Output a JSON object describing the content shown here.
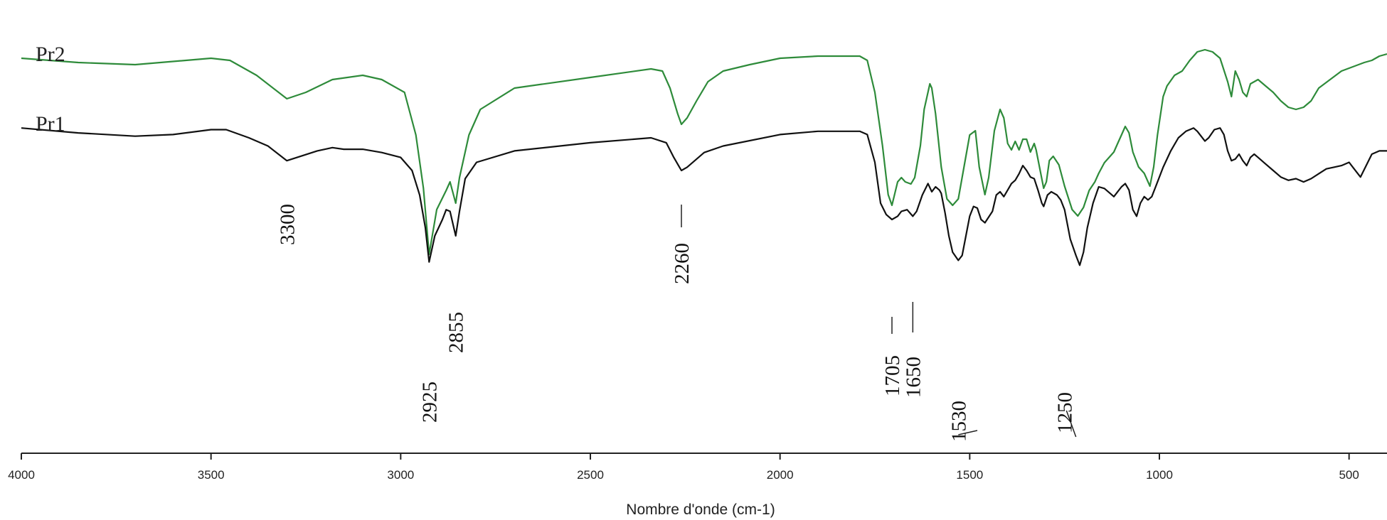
{
  "chart_data": {
    "type": "line",
    "title": "",
    "xlabel": "Nombre d'onde (cm-1)",
    "ylabel": "",
    "xlim": [
      4000,
      400
    ],
    "x_reversed": true,
    "grid": false,
    "x_ticks": [
      4000,
      3500,
      3000,
      2500,
      2000,
      1500,
      1000,
      500
    ],
    "series_labels": [
      "Pr2",
      "Pr1"
    ],
    "series": [
      {
        "name": "Pr2",
        "color": "#2e8b3a",
        "points": [
          [
            4000,
            0.96
          ],
          [
            3850,
            0.94
          ],
          [
            3700,
            0.93
          ],
          [
            3500,
            0.96
          ],
          [
            3450,
            0.95
          ],
          [
            3380,
            0.88
          ],
          [
            3300,
            0.77
          ],
          [
            3250,
            0.8
          ],
          [
            3180,
            0.86
          ],
          [
            3100,
            0.88
          ],
          [
            3050,
            0.86
          ],
          [
            2990,
            0.8
          ],
          [
            2960,
            0.6
          ],
          [
            2940,
            0.35
          ],
          [
            2925,
            0.04
          ],
          [
            2905,
            0.25
          ],
          [
            2880,
            0.34
          ],
          [
            2870,
            0.38
          ],
          [
            2858,
            0.3
          ],
          [
            2855,
            0.28
          ],
          [
            2845,
            0.4
          ],
          [
            2820,
            0.6
          ],
          [
            2790,
            0.72
          ],
          [
            2700,
            0.82
          ],
          [
            2500,
            0.87
          ],
          [
            2340,
            0.91
          ],
          [
            2310,
            0.9
          ],
          [
            2290,
            0.82
          ],
          [
            2270,
            0.7
          ],
          [
            2260,
            0.65
          ],
          [
            2245,
            0.68
          ],
          [
            2220,
            0.76
          ],
          [
            2190,
            0.85
          ],
          [
            2150,
            0.9
          ],
          [
            2080,
            0.93
          ],
          [
            2000,
            0.96
          ],
          [
            1900,
            0.97
          ],
          [
            1790,
            0.97
          ],
          [
            1770,
            0.95
          ],
          [
            1750,
            0.8
          ],
          [
            1730,
            0.55
          ],
          [
            1715,
            0.32
          ],
          [
            1705,
            0.27
          ],
          [
            1690,
            0.38
          ],
          [
            1680,
            0.4
          ],
          [
            1670,
            0.38
          ],
          [
            1655,
            0.37
          ],
          [
            1645,
            0.4
          ],
          [
            1630,
            0.55
          ],
          [
            1620,
            0.72
          ],
          [
            1605,
            0.84
          ],
          [
            1600,
            0.82
          ],
          [
            1590,
            0.7
          ],
          [
            1575,
            0.45
          ],
          [
            1560,
            0.3
          ],
          [
            1545,
            0.27
          ],
          [
            1530,
            0.3
          ],
          [
            1515,
            0.45
          ],
          [
            1500,
            0.6
          ],
          [
            1485,
            0.62
          ],
          [
            1475,
            0.45
          ],
          [
            1460,
            0.32
          ],
          [
            1450,
            0.4
          ],
          [
            1435,
            0.62
          ],
          [
            1420,
            0.72
          ],
          [
            1410,
            0.68
          ],
          [
            1400,
            0.56
          ],
          [
            1390,
            0.53
          ],
          [
            1380,
            0.57
          ],
          [
            1370,
            0.53
          ],
          [
            1360,
            0.58
          ],
          [
            1350,
            0.58
          ],
          [
            1340,
            0.52
          ],
          [
            1330,
            0.56
          ],
          [
            1325,
            0.53
          ],
          [
            1315,
            0.44
          ],
          [
            1305,
            0.35
          ],
          [
            1298,
            0.38
          ],
          [
            1290,
            0.48
          ],
          [
            1280,
            0.5
          ],
          [
            1265,
            0.46
          ],
          [
            1250,
            0.36
          ],
          [
            1230,
            0.25
          ],
          [
            1215,
            0.22
          ],
          [
            1200,
            0.26
          ],
          [
            1185,
            0.34
          ],
          [
            1170,
            0.38
          ],
          [
            1160,
            0.42
          ],
          [
            1145,
            0.47
          ],
          [
            1130,
            0.5
          ],
          [
            1120,
            0.52
          ],
          [
            1110,
            0.56
          ],
          [
            1100,
            0.6
          ],
          [
            1090,
            0.64
          ],
          [
            1080,
            0.61
          ],
          [
            1070,
            0.52
          ],
          [
            1055,
            0.45
          ],
          [
            1040,
            0.42
          ],
          [
            1025,
            0.36
          ],
          [
            1015,
            0.45
          ],
          [
            1005,
            0.6
          ],
          [
            990,
            0.78
          ],
          [
            980,
            0.83
          ],
          [
            960,
            0.88
          ],
          [
            940,
            0.9
          ],
          [
            920,
            0.95
          ],
          [
            900,
            0.99
          ],
          [
            880,
            1.0
          ],
          [
            860,
            0.99
          ],
          [
            840,
            0.96
          ],
          [
            820,
            0.85
          ],
          [
            810,
            0.78
          ],
          [
            800,
            0.9
          ],
          [
            790,
            0.86
          ],
          [
            780,
            0.8
          ],
          [
            770,
            0.78
          ],
          [
            760,
            0.84
          ],
          [
            740,
            0.86
          ],
          [
            720,
            0.83
          ],
          [
            700,
            0.8
          ],
          [
            680,
            0.76
          ],
          [
            660,
            0.73
          ],
          [
            640,
            0.72
          ],
          [
            620,
            0.73
          ],
          [
            600,
            0.76
          ],
          [
            580,
            0.82
          ],
          [
            550,
            0.86
          ],
          [
            520,
            0.9
          ],
          [
            490,
            0.92
          ],
          [
            460,
            0.94
          ],
          [
            440,
            0.95
          ],
          [
            420,
            0.97
          ],
          [
            400,
            0.98
          ]
        ]
      },
      {
        "name": "Pr1",
        "color": "#111111",
        "points": [
          [
            4000,
            0.86
          ],
          [
            3850,
            0.83
          ],
          [
            3700,
            0.81
          ],
          [
            3600,
            0.82
          ],
          [
            3500,
            0.85
          ],
          [
            3460,
            0.85
          ],
          [
            3400,
            0.8
          ],
          [
            3350,
            0.75
          ],
          [
            3300,
            0.66
          ],
          [
            3260,
            0.69
          ],
          [
            3220,
            0.72
          ],
          [
            3180,
            0.74
          ],
          [
            3150,
            0.73
          ],
          [
            3100,
            0.73
          ],
          [
            3050,
            0.71
          ],
          [
            3000,
            0.68
          ],
          [
            2970,
            0.6
          ],
          [
            2950,
            0.45
          ],
          [
            2935,
            0.25
          ],
          [
            2925,
            0.04
          ],
          [
            2910,
            0.2
          ],
          [
            2890,
            0.3
          ],
          [
            2880,
            0.36
          ],
          [
            2870,
            0.35
          ],
          [
            2860,
            0.25
          ],
          [
            2855,
            0.2
          ],
          [
            2845,
            0.35
          ],
          [
            2830,
            0.55
          ],
          [
            2800,
            0.65
          ],
          [
            2700,
            0.72
          ],
          [
            2500,
            0.77
          ],
          [
            2340,
            0.8
          ],
          [
            2300,
            0.77
          ],
          [
            2280,
            0.68
          ],
          [
            2265,
            0.62
          ],
          [
            2260,
            0.6
          ],
          [
            2245,
            0.62
          ],
          [
            2220,
            0.67
          ],
          [
            2200,
            0.71
          ],
          [
            2150,
            0.75
          ],
          [
            2000,
            0.82
          ],
          [
            1900,
            0.84
          ],
          [
            1790,
            0.84
          ],
          [
            1770,
            0.82
          ],
          [
            1750,
            0.65
          ],
          [
            1735,
            0.4
          ],
          [
            1720,
            0.33
          ],
          [
            1705,
            0.3
          ],
          [
            1690,
            0.32
          ],
          [
            1680,
            0.35
          ],
          [
            1665,
            0.36
          ],
          [
            1650,
            0.32
          ],
          [
            1640,
            0.35
          ],
          [
            1625,
            0.45
          ],
          [
            1610,
            0.52
          ],
          [
            1600,
            0.47
          ],
          [
            1590,
            0.5
          ],
          [
            1580,
            0.48
          ],
          [
            1575,
            0.46
          ],
          [
            1565,
            0.34
          ],
          [
            1555,
            0.2
          ],
          [
            1545,
            0.1
          ],
          [
            1530,
            0.05
          ],
          [
            1520,
            0.08
          ],
          [
            1510,
            0.2
          ],
          [
            1500,
            0.32
          ],
          [
            1490,
            0.38
          ],
          [
            1480,
            0.37
          ],
          [
            1470,
            0.3
          ],
          [
            1460,
            0.28
          ],
          [
            1440,
            0.35
          ],
          [
            1430,
            0.45
          ],
          [
            1420,
            0.47
          ],
          [
            1410,
            0.44
          ],
          [
            1400,
            0.48
          ],
          [
            1390,
            0.52
          ],
          [
            1380,
            0.54
          ],
          [
            1370,
            0.58
          ],
          [
            1360,
            0.63
          ],
          [
            1350,
            0.6
          ],
          [
            1340,
            0.56
          ],
          [
            1330,
            0.55
          ],
          [
            1320,
            0.48
          ],
          [
            1310,
            0.4
          ],
          [
            1305,
            0.38
          ],
          [
            1295,
            0.45
          ],
          [
            1285,
            0.47
          ],
          [
            1270,
            0.45
          ],
          [
            1260,
            0.42
          ],
          [
            1250,
            0.36
          ],
          [
            1235,
            0.18
          ],
          [
            1220,
            0.08
          ],
          [
            1210,
            0.02
          ],
          [
            1200,
            0.1
          ],
          [
            1190,
            0.25
          ],
          [
            1175,
            0.4
          ],
          [
            1160,
            0.5
          ],
          [
            1145,
            0.49
          ],
          [
            1130,
            0.46
          ],
          [
            1120,
            0.44
          ],
          [
            1110,
            0.47
          ],
          [
            1100,
            0.5
          ],
          [
            1090,
            0.52
          ],
          [
            1080,
            0.48
          ],
          [
            1070,
            0.36
          ],
          [
            1060,
            0.32
          ],
          [
            1050,
            0.4
          ],
          [
            1040,
            0.44
          ],
          [
            1030,
            0.42
          ],
          [
            1020,
            0.44
          ],
          [
            1010,
            0.5
          ],
          [
            990,
            0.62
          ],
          [
            970,
            0.72
          ],
          [
            950,
            0.8
          ],
          [
            930,
            0.84
          ],
          [
            910,
            0.86
          ],
          [
            900,
            0.84
          ],
          [
            880,
            0.78
          ],
          [
            870,
            0.8
          ],
          [
            855,
            0.85
          ],
          [
            840,
            0.86
          ],
          [
            830,
            0.82
          ],
          [
            820,
            0.72
          ],
          [
            810,
            0.66
          ],
          [
            800,
            0.67
          ],
          [
            790,
            0.7
          ],
          [
            780,
            0.66
          ],
          [
            770,
            0.63
          ],
          [
            760,
            0.68
          ],
          [
            750,
            0.7
          ],
          [
            740,
            0.68
          ],
          [
            720,
            0.64
          ],
          [
            700,
            0.6
          ],
          [
            680,
            0.56
          ],
          [
            660,
            0.54
          ],
          [
            640,
            0.55
          ],
          [
            620,
            0.53
          ],
          [
            600,
            0.55
          ],
          [
            580,
            0.58
          ],
          [
            560,
            0.61
          ],
          [
            540,
            0.62
          ],
          [
            520,
            0.63
          ],
          [
            500,
            0.65
          ],
          [
            490,
            0.62
          ],
          [
            470,
            0.56
          ],
          [
            455,
            0.63
          ],
          [
            440,
            0.7
          ],
          [
            420,
            0.72
          ],
          [
            400,
            0.72
          ]
        ]
      }
    ],
    "annotations": [
      {
        "text": "3300",
        "x": 3300
      },
      {
        "text": "2925",
        "x": 2925
      },
      {
        "text": "2855",
        "x": 2855
      },
      {
        "text": "2260",
        "x": 2260
      },
      {
        "text": "1705",
        "x": 1705
      },
      {
        "text": "1650",
        "x": 1650
      },
      {
        "text": "1530",
        "x": 1530
      },
      {
        "text": "1250",
        "x": 1250
      }
    ]
  }
}
